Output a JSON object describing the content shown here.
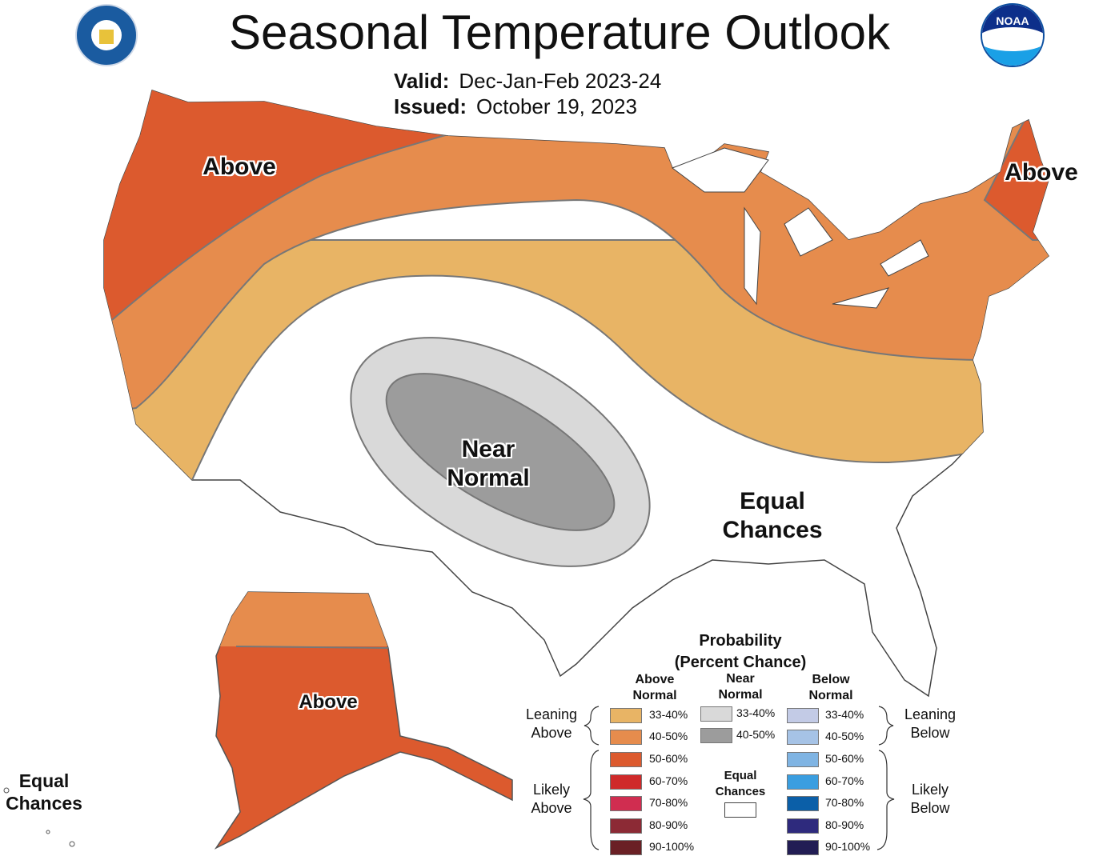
{
  "header": {
    "title": "Seasonal Temperature Outlook",
    "valid_label": "Valid:",
    "valid_value": "Dec-Jan-Feb 2023-24",
    "issued_label": "Issued:",
    "issued_value": "October 19, 2023",
    "left_logo": "department-of-commerce-seal",
    "right_logo": "noaa-logo",
    "noaa_text": "NOAA"
  },
  "map": {
    "labels": {
      "northwest": "Above",
      "northeast": "Above",
      "southwest_center": "Near Normal",
      "southeast": "Equal Chances",
      "alaska": "Above",
      "hawaii": "Equal Chances"
    },
    "colors": {
      "above_33_40": "#e8b465",
      "above_40_50": "#e68c4d",
      "above_50_60": "#dc5a2e",
      "near_33_40": "#d9d9d9",
      "near_40_50": "#9c9c9c",
      "equal_chances": "#ffffff"
    }
  },
  "legend": {
    "title_line1": "Probability",
    "title_line2": "(Percent Chance)",
    "above_header": [
      "Above",
      "Normal"
    ],
    "near_header": [
      "Near",
      "Normal"
    ],
    "below_header": [
      "Below",
      "Normal"
    ],
    "leaning_above": [
      "Leaning",
      "Above"
    ],
    "likely_above": [
      "Likely",
      "Above"
    ],
    "leaning_below": [
      "Leaning",
      "Below"
    ],
    "likely_below": [
      "Likely",
      "Below"
    ],
    "equal_chances": [
      "Equal",
      "Chances"
    ],
    "above": [
      {
        "range": "33-40%",
        "color": "#e8b465"
      },
      {
        "range": "40-50%",
        "color": "#e68c4d"
      },
      {
        "range": "50-60%",
        "color": "#dc5a2e"
      },
      {
        "range": "60-70%",
        "color": "#cf2a2a"
      },
      {
        "range": "70-80%",
        "color": "#d02d50"
      },
      {
        "range": "80-90%",
        "color": "#8c2a35"
      },
      {
        "range": "90-100%",
        "color": "#6a2025"
      }
    ],
    "near": [
      {
        "range": "33-40%",
        "color": "#d9d9d9"
      },
      {
        "range": "40-50%",
        "color": "#9c9c9c"
      }
    ],
    "below": [
      {
        "range": "33-40%",
        "color": "#c3cbe6"
      },
      {
        "range": "40-50%",
        "color": "#a6c3e6"
      },
      {
        "range": "50-60%",
        "color": "#7fb4e3"
      },
      {
        "range": "60-70%",
        "color": "#3a9ee0"
      },
      {
        "range": "70-80%",
        "color": "#0b5fa8"
      },
      {
        "range": "80-90%",
        "color": "#2e2a7d"
      },
      {
        "range": "90-100%",
        "color": "#221d54"
      }
    ]
  }
}
